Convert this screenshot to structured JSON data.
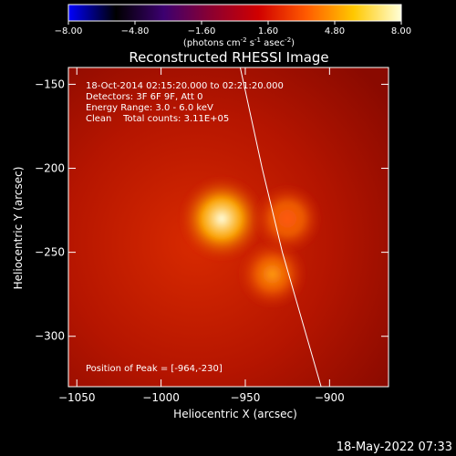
{
  "colorbar": {
    "ticks": [
      "-8.00",
      "-4.80",
      "-1.60",
      "1.60",
      "4.80",
      "8.00"
    ],
    "unit_prefix": "(photons cm",
    "unit_sup1": "-2",
    "unit_mid": " s",
    "unit_sup2": "-1",
    "unit_mid2": " asec",
    "unit_sup3": "-2",
    "unit_suffix": ")",
    "colors": [
      "#0000ff",
      "#000000",
      "#3c0070",
      "#8c0030",
      "#d00000",
      "#ff5a00",
      "#ffc800",
      "#ffffd8"
    ]
  },
  "chart_data": {
    "type": "heatmap",
    "title": "Reconstructed RHESSI Image",
    "xlabel": "Heliocentric X (arcsec)",
    "ylabel": "Heliocentric Y (arcsec)",
    "xlim": [
      -1055,
      -865
    ],
    "ylim": [
      -330,
      -140
    ],
    "x_ticks": [
      -1050,
      -1000,
      -950,
      -900
    ],
    "y_ticks": [
      -150,
      -200,
      -250,
      -300
    ],
    "x_tick_labels": [
      "−1050",
      "−1000",
      "−950",
      "−900"
    ],
    "y_tick_labels": [
      "−150",
      "−200",
      "−250",
      "−300"
    ],
    "sources": [
      {
        "x": -964,
        "y": -230,
        "peak": 1.0,
        "width": 10
      },
      {
        "x": -934,
        "y": -263,
        "peak": 0.62,
        "width": 8
      },
      {
        "x": -925,
        "y": -230,
        "peak": 0.42,
        "width": 8
      }
    ],
    "limb": [
      [
        -953,
        -140
      ],
      [
        -940,
        -200
      ],
      [
        -928,
        -250
      ],
      [
        -905,
        -330
      ]
    ],
    "annotations": [
      "18-Oct-2014 02:15:20.000 to 02:21:20.000",
      "Detectors: 3F 6F 9F, Att 0",
      "Energy Range: 3.0 - 6.0 keV",
      "Clean    Total counts: 3.11E+05"
    ],
    "peak_label": "Position of Peak = [-964,-230]"
  },
  "footer": {
    "timestamp": "18-May-2022 07:33"
  }
}
